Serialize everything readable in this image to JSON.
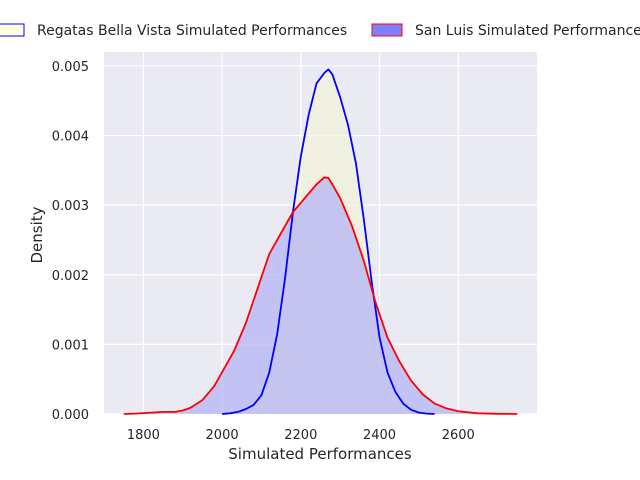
{
  "chart_data": {
    "type": "area",
    "title": "",
    "xlabel": "Simulated Performances",
    "ylabel": "Density",
    "xlim": [
      1700,
      2800
    ],
    "ylim": [
      0,
      0.0052
    ],
    "xticks": [
      1800,
      2000,
      2200,
      2400,
      2600
    ],
    "xtick_labels": [
      "1800",
      "2000",
      "2200",
      "2400",
      "2600"
    ],
    "yticks": [
      0,
      0.001,
      0.002,
      0.003,
      0.004,
      0.005
    ],
    "ytick_labels": [
      "0.000",
      "0.001",
      "0.002",
      "0.003",
      "0.004",
      "0.005"
    ],
    "grid": true,
    "legend_position": "top",
    "series": [
      {
        "name": "Regatas Bella Vista Simulated Performances",
        "line_color": "#0000ff",
        "fill_color": "#f2f2d9",
        "legend_fill": "#ffffe0",
        "x": [
          2000,
          2020,
          2040,
          2060,
          2080,
          2100,
          2120,
          2140,
          2160,
          2180,
          2200,
          2220,
          2240,
          2260,
          2270,
          2280,
          2300,
          2320,
          2340,
          2360,
          2380,
          2400,
          2420,
          2440,
          2460,
          2480,
          2500,
          2520,
          2540
        ],
        "y": [
          0,
          1e-05,
          3e-05,
          7e-05,
          0.00013,
          0.00027,
          0.0006,
          0.00115,
          0.00195,
          0.0029,
          0.0037,
          0.0043,
          0.00475,
          0.0049,
          0.00495,
          0.00488,
          0.00455,
          0.00415,
          0.0036,
          0.0028,
          0.0019,
          0.0011,
          0.0006,
          0.00032,
          0.00015,
          6e-05,
          2e-05,
          5e-06,
          0
        ]
      },
      {
        "name": "San Luis Simulated Performances",
        "line_color": "#ff0000",
        "fill_color": "#b0b0f5",
        "legend_fill": "#8080ff",
        "x": [
          1750,
          1780,
          1820,
          1850,
          1880,
          1900,
          1920,
          1950,
          1980,
          2000,
          2030,
          2060,
          2090,
          2120,
          2150,
          2180,
          2210,
          2240,
          2260,
          2270,
          2280,
          2300,
          2330,
          2360,
          2390,
          2420,
          2450,
          2480,
          2510,
          2540,
          2570,
          2600,
          2650,
          2700,
          2750
        ],
        "y": [
          0,
          5e-06,
          2e-05,
          3e-05,
          3e-05,
          5e-05,
          9e-05,
          0.0002,
          0.0004,
          0.0006,
          0.0009,
          0.0013,
          0.0018,
          0.0023,
          0.0026,
          0.0029,
          0.0031,
          0.0033,
          0.0034,
          0.00339,
          0.0033,
          0.0031,
          0.0027,
          0.0022,
          0.0016,
          0.0011,
          0.00076,
          0.00048,
          0.00028,
          0.00015,
          8e-05,
          4e-05,
          1e-05,
          3e-06,
          0
        ]
      }
    ]
  }
}
